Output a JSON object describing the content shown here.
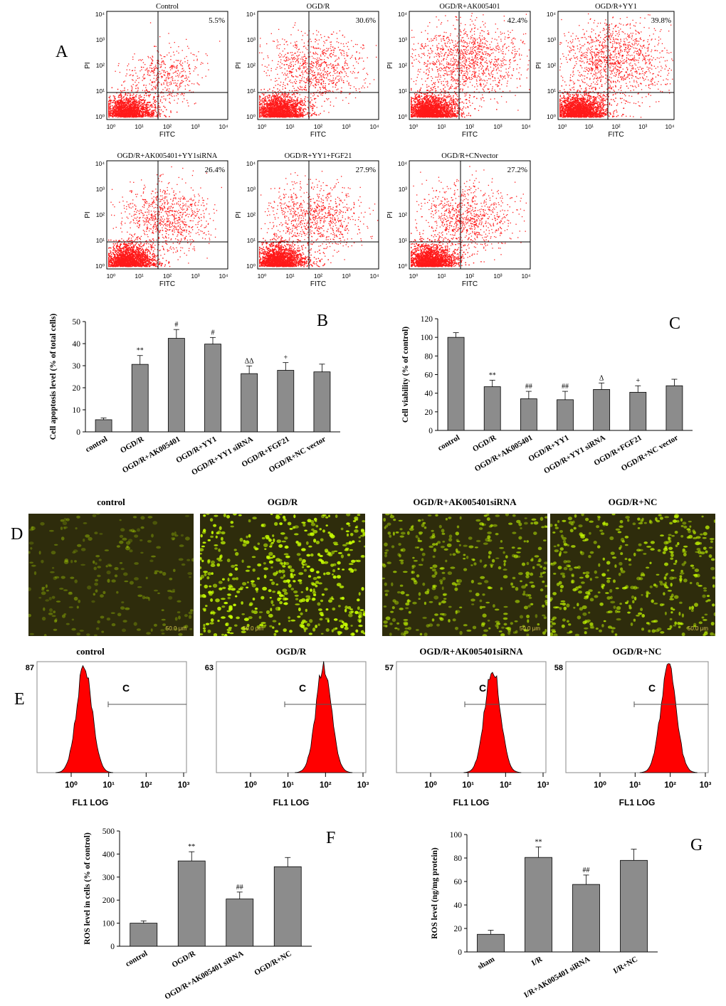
{
  "panel_letters": {
    "A": "A",
    "B": "B",
    "C": "C",
    "D": "D",
    "E": "E",
    "F": "F",
    "G": "G"
  },
  "colors": {
    "scatter": "#ff1a1a",
    "bar": "#8c8c8c",
    "hist": "#ff0000",
    "micro_bg": "#2e2c0c",
    "cells": "#c8ff00"
  },
  "panelA": {
    "x_label": "FITC",
    "y_label": "PI",
    "tick_labels": [
      "10⁰",
      "10¹",
      "10²",
      "10³",
      "10⁴"
    ],
    "plots": [
      {
        "title": "Control",
        "pct": "5.5%",
        "density": 1
      },
      {
        "title": "OGD/R",
        "pct": "30.6%",
        "density": 2
      },
      {
        "title": "OGD/R+AK005401",
        "pct": "42.4%",
        "density": 3
      },
      {
        "title": "OGD/R+YY1",
        "pct": "39.8%",
        "density": 3
      },
      {
        "title": "OGD/R+AK005401+YY1siRNA",
        "pct": "26.4%",
        "density": 2
      },
      {
        "title": "OGD/R+YY1+FGF21",
        "pct": "27.9%",
        "density": 2
      },
      {
        "title": "OGD/R+CNvector",
        "pct": "27.2%",
        "density": 2
      }
    ]
  },
  "chart_data": [
    {
      "id": "B",
      "type": "bar",
      "categories": [
        "control",
        "OGD/R",
        "OGD/R+AK005401",
        "OGD/R+YY1",
        "OGD/R+YY1 siRNA",
        "OGD/R+FGF21",
        "OGD/R+NC vector"
      ],
      "values": [
        5.5,
        30.6,
        42.4,
        39.8,
        26.4,
        27.9,
        27.2
      ],
      "errors": [
        0.8,
        4,
        4,
        3,
        3.5,
        3.5,
        3.5
      ],
      "annotations": [
        "",
        "**",
        "#",
        "#",
        "ΔΔ",
        "+",
        ""
      ],
      "ylabel": "Cell apoptosis level (% of total cells)",
      "ylim": [
        0,
        50
      ],
      "yticks": [
        0,
        10,
        20,
        30,
        40,
        50
      ]
    },
    {
      "id": "C",
      "type": "bar",
      "categories": [
        "control",
        "OGD/R",
        "OGD/R+AK005401",
        "OGD/R+YY1",
        "OGD/R+YY1 siRNA",
        "OGD/R+FGF21",
        "OGD/R+NC vector"
      ],
      "values": [
        100,
        47,
        34,
        33,
        44,
        41,
        48
      ],
      "errors": [
        5,
        7,
        8,
        9,
        7,
        7,
        7
      ],
      "annotations": [
        "",
        "**",
        "##",
        "##",
        "Δ",
        "+",
        ""
      ],
      "ylabel": "Cell viability (% of control)",
      "ylim": [
        0,
        120
      ],
      "yticks": [
        0,
        20,
        40,
        60,
        80,
        100,
        120
      ]
    },
    {
      "id": "F",
      "type": "bar",
      "categories": [
        "control",
        "OGD/R",
        "OGD/R+AK005401 siRNA",
        "OGD/R+NC"
      ],
      "values": [
        100,
        370,
        205,
        345
      ],
      "errors": [
        10,
        40,
        30,
        40
      ],
      "annotations": [
        "",
        "**",
        "##",
        ""
      ],
      "ylabel": "ROS level in cells (% of control)",
      "ylim": [
        0,
        500
      ],
      "yticks": [
        0,
        100,
        200,
        300,
        400,
        500
      ]
    },
    {
      "id": "G",
      "type": "bar",
      "categories": [
        "sham",
        "I/R",
        "I/R+AK005401 siRNA",
        "I/R+NC"
      ],
      "values": [
        15,
        80.5,
        57.5,
        78
      ],
      "errors": [
        3.5,
        9,
        8,
        9.5
      ],
      "annotations": [
        "",
        "**",
        "##",
        ""
      ],
      "ylabel": "ROS level (ng/mg protein)",
      "ylim": [
        0,
        100
      ],
      "yticks": [
        0,
        20,
        40,
        60,
        80,
        100
      ]
    }
  ],
  "panelD": {
    "labels": [
      "control",
      "OGD/R",
      "OGD/R+AK005401siRNA",
      "OGD/R+NC"
    ],
    "scale_bar": "50.0 μm",
    "density": [
      0,
      1,
      2,
      3
    ]
  },
  "panelE": {
    "x_label": "FL1 LOG",
    "gate_label": "C",
    "tick_labels": [
      "10⁰",
      "10¹",
      "10²",
      "10³"
    ],
    "plots": [
      {
        "title": "control",
        "ymax": "87",
        "peak": 0.35
      },
      {
        "title": "OGD/R",
        "ymax": "63",
        "peak": 1.95
      },
      {
        "title": "OGD/R+AK005401siRNA",
        "ymax": "57",
        "peak": 1.65
      },
      {
        "title": "OGD/R+NC",
        "ymax": "58",
        "peak": 1.95
      }
    ]
  }
}
